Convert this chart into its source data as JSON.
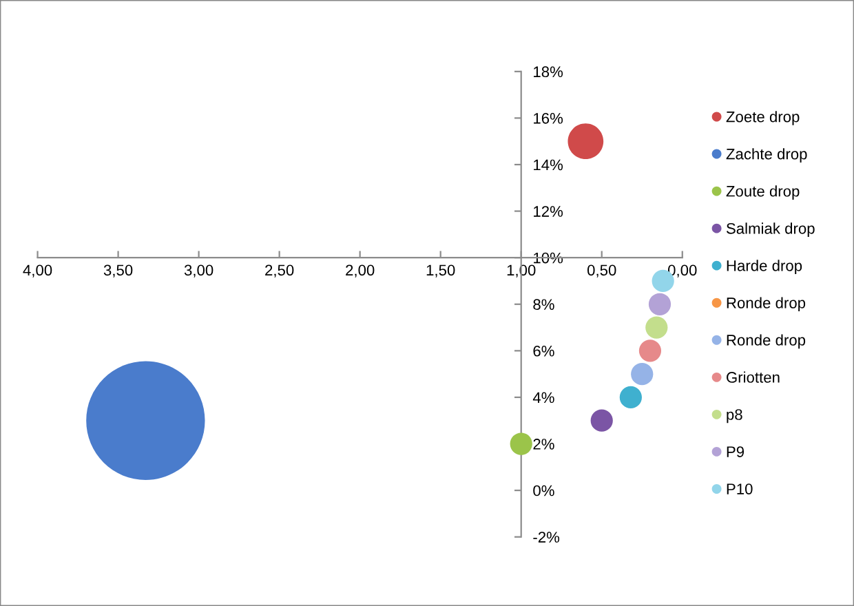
{
  "chart_data": {
    "type": "bubble",
    "xlim": [
      4,
      0
    ],
    "xticks": [
      {
        "value": 4,
        "label": "4,00"
      },
      {
        "value": 3.5,
        "label": "3,50"
      },
      {
        "value": 3,
        "label": "3,00"
      },
      {
        "value": 2.5,
        "label": "2,50"
      },
      {
        "value": 2,
        "label": "2,00"
      },
      {
        "value": 1.5,
        "label": "1,50"
      },
      {
        "value": 1,
        "label": "1,00"
      },
      {
        "value": 0.5,
        "label": "0,50"
      },
      {
        "value": 0,
        "label": "0,00"
      }
    ],
    "ylim": [
      -2,
      18
    ],
    "yticks": [
      {
        "value": -2,
        "label": "-2%"
      },
      {
        "value": 0,
        "label": "0%"
      },
      {
        "value": 2,
        "label": "2%"
      },
      {
        "value": 4,
        "label": "4%"
      },
      {
        "value": 6,
        "label": "6%"
      },
      {
        "value": 8,
        "label": "8%"
      },
      {
        "value": 10,
        "label": "10%"
      },
      {
        "value": 12,
        "label": "12%"
      },
      {
        "value": 14,
        "label": "14%"
      },
      {
        "value": 16,
        "label": "16%"
      },
      {
        "value": 18,
        "label": "18%"
      }
    ],
    "grid": false,
    "legend": "right",
    "series": [
      {
        "name": "Zoete drop",
        "color": "#d04a4a",
        "x": [
          0.6
        ],
        "values": [
          15
        ],
        "sizes": [
          0.09
        ]
      },
      {
        "name": "Zachte drop",
        "color": "#4a7ccc",
        "x": [
          3.33
        ],
        "values": [
          3
        ],
        "sizes": [
          1
        ]
      },
      {
        "name": "Zoute drop",
        "color": "#9bc44a",
        "x": [
          1.0
        ],
        "values": [
          2
        ],
        "sizes": [
          0.035
        ]
      },
      {
        "name": "Salmiak drop",
        "color": "#7b55a5",
        "x": [
          0.5
        ],
        "values": [
          3
        ],
        "sizes": [
          0.035
        ]
      },
      {
        "name": "Harde drop",
        "color": "#3fb0cf",
        "x": [
          0.32
        ],
        "values": [
          4
        ],
        "sizes": [
          0.035
        ]
      },
      {
        "name": "Ronde drop",
        "color": "#f79646",
        "x": [
          null
        ],
        "values": [
          null
        ],
        "sizes": [
          null
        ]
      },
      {
        "name": "Ronde drop",
        "color": "#95b3e7",
        "x": [
          0.25
        ],
        "values": [
          5
        ],
        "sizes": [
          0.035
        ]
      },
      {
        "name": "Griotten",
        "color": "#e6898a",
        "x": [
          0.2
        ],
        "values": [
          6
        ],
        "sizes": [
          0.035
        ]
      },
      {
        "name": "p8",
        "color": "#c3de8c",
        "x": [
          0.16
        ],
        "values": [
          7
        ],
        "sizes": [
          0.035
        ]
      },
      {
        "name": "P9",
        "color": "#b3a2d6",
        "x": [
          0.14
        ],
        "values": [
          8
        ],
        "sizes": [
          0.035
        ]
      },
      {
        "name": "P10",
        "color": "#92d5ea",
        "x": [
          0.12
        ],
        "values": [
          9
        ],
        "sizes": [
          0.035
        ]
      }
    ]
  }
}
